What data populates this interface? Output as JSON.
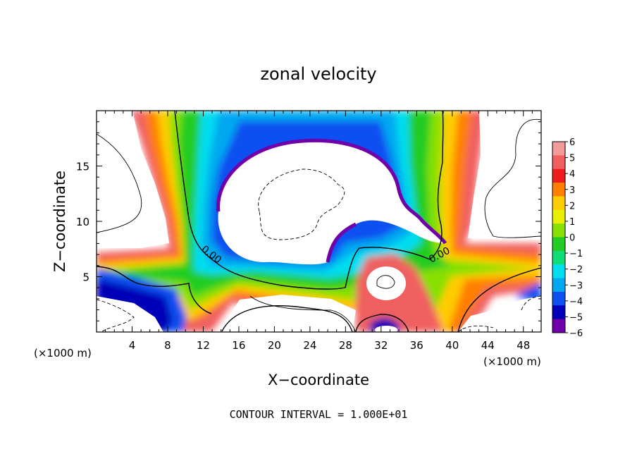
{
  "chart_data": {
    "type": "heatmap",
    "title": "zonal velocity",
    "xlabel": "X−coordinate",
    "ylabel": "Z−coordinate",
    "x_unit_left": "(×1000 m)",
    "x_unit_right": "(×1000 m)",
    "footer": "CONTOUR INTERVAL = 1.000E+01",
    "xlim": [
      0,
      50
    ],
    "ylim": [
      0,
      20
    ],
    "x_ticks": [
      4,
      8,
      12,
      16,
      20,
      24,
      28,
      32,
      36,
      40,
      44,
      48
    ],
    "x_tick_labels": [
      "4",
      "8",
      "12",
      "16",
      "20",
      "24",
      "28",
      "32",
      "36",
      "40",
      "44",
      "48"
    ],
    "y_ticks": [
      5,
      10,
      15
    ],
    "y_tick_labels": [
      "5",
      "10",
      "15"
    ],
    "colorbar": {
      "range": [
        -6,
        6
      ],
      "levels": [
        6,
        5,
        4,
        3,
        2,
        1,
        0,
        -1,
        -2,
        -3,
        -4,
        -5,
        -6
      ],
      "labels": [
        "6",
        "5",
        "4",
        "3",
        "2",
        "1",
        "0",
        "−1",
        "−2",
        "−3",
        "−4",
        "−5",
        "−6"
      ],
      "colors": [
        "#f49a9a",
        "#f06060",
        "#ee1c1c",
        "#ff7f00",
        "#ffcc00",
        "#e8f000",
        "#88e000",
        "#22cc22",
        "#11dd77",
        "#00ddee",
        "#00a8f0",
        "#1050f0",
        "#0000b8",
        "#7000a8"
      ]
    },
    "contour_labels": [
      {
        "text": "0.00",
        "x": 12.9,
        "y": 7.4
      },
      {
        "text": "0.00",
        "x": 38.4,
        "y": 7.2
      }
    ]
  }
}
